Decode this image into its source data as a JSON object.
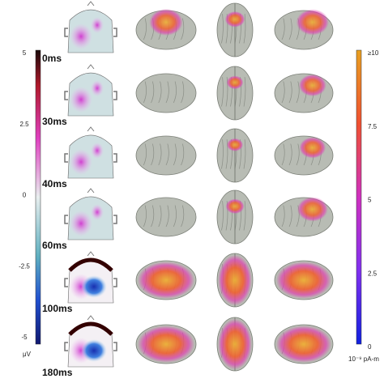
{
  "figure": {
    "time_labels": [
      "0ms",
      "30ms",
      "40ms",
      "60ms",
      "100ms",
      "180ms"
    ],
    "left_colorbar": {
      "ticks": [
        "5",
        "2.5",
        "0",
        "-2.5",
        "-5"
      ],
      "unit": "μV"
    },
    "right_colorbar": {
      "ticks": [
        "≥10",
        "7.5",
        "5",
        "2.5",
        "0"
      ],
      "unit": "10⁻⁹ pA-m"
    }
  }
}
